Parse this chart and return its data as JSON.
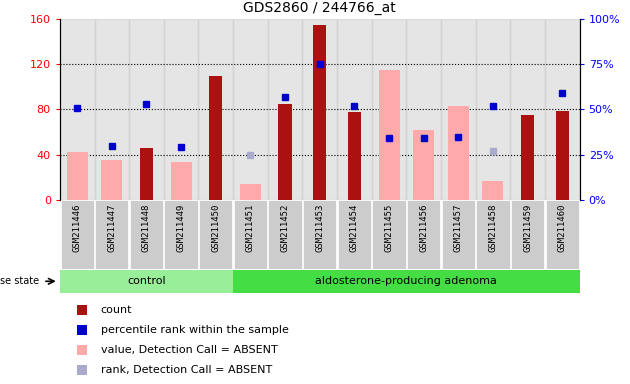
{
  "title": "GDS2860 / 244766_at",
  "samples": [
    "GSM211446",
    "GSM211447",
    "GSM211448",
    "GSM211449",
    "GSM211450",
    "GSM211451",
    "GSM211452",
    "GSM211453",
    "GSM211454",
    "GSM211455",
    "GSM211456",
    "GSM211457",
    "GSM211458",
    "GSM211459",
    "GSM211460"
  ],
  "count": [
    null,
    null,
    46,
    null,
    110,
    null,
    85,
    155,
    78,
    null,
    null,
    null,
    null,
    75,
    79
  ],
  "percentile_rank": [
    51,
    30,
    53,
    29,
    null,
    null,
    57,
    75,
    52,
    34,
    34,
    35,
    52,
    null,
    59
  ],
  "value_absent": [
    42,
    35,
    null,
    33,
    null,
    14,
    null,
    null,
    null,
    115,
    62,
    83,
    17,
    null,
    null
  ],
  "rank_absent": [
    null,
    null,
    null,
    null,
    null,
    25,
    null,
    null,
    null,
    null,
    34,
    35,
    27,
    null,
    null
  ],
  "n_control": 5,
  "n_total": 15,
  "ylim_left": [
    0,
    160
  ],
  "ylim_right": [
    0,
    100
  ],
  "yticks_left": [
    0,
    40,
    80,
    120,
    160
  ],
  "yticks_right": [
    0,
    25,
    50,
    75,
    100
  ],
  "ytick_labels_left": [
    "0",
    "40",
    "80",
    "120",
    "160"
  ],
  "ytick_labels_right": [
    "0%",
    "25%",
    "50%",
    "75%",
    "100%"
  ],
  "bar_color": "#aa1111",
  "percentile_color": "#0000cc",
  "value_absent_color": "#ffaaaa",
  "rank_absent_color": "#aaaacc",
  "control_color": "#99ee99",
  "adenoma_color": "#44dd44",
  "bg_color": "#cccccc",
  "disease_state_label": "disease state",
  "control_label": "control",
  "adenoma_label": "aldosterone-producing adenoma",
  "legend_count": "count",
  "legend_pct": "percentile rank within the sample",
  "legend_val_absent": "value, Detection Call = ABSENT",
  "legend_rank_absent": "rank, Detection Call = ABSENT"
}
